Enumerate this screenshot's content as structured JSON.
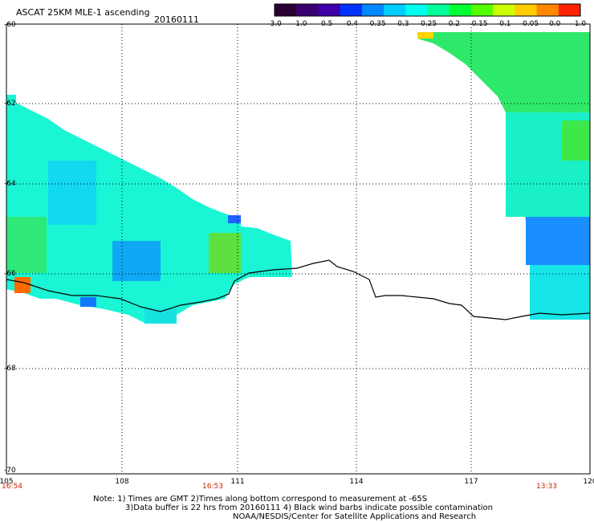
{
  "header": {
    "title": "ASCAT 25KM MLE-1 ascending",
    "date": "20160111"
  },
  "colorbar": {
    "labels": [
      "-3.0",
      "-1.0",
      "-0.5",
      "-0.4",
      "-0.35",
      "-0.3",
      "-0.25",
      "-0.2",
      "-0.15",
      "-0.1",
      "-0.05",
      "0.0",
      "1.0"
    ],
    "colors": [
      "#2a0033",
      "#3a0070",
      "#3f00a8",
      "#0033ff",
      "#0088ff",
      "#00ccff",
      "#00ffee",
      "#00ff99",
      "#00ff33",
      "#55ff00",
      "#ccff00",
      "#ffcc00",
      "#ff8800",
      "#ff2200"
    ]
  },
  "axes": {
    "x_ticks": [
      "105",
      "108",
      "111",
      "114",
      "117",
      "120"
    ],
    "y_ticks": [
      "-60",
      "-62",
      "-64",
      "-66",
      "-68",
      "-70"
    ],
    "times": [
      "16:54",
      "16:53",
      "13:33"
    ]
  },
  "notes": {
    "line1": "Note: 1) Times are GMT 2)Times along bottom correspond to measurement at -65S",
    "line2": "3)Data buffer is 22 hrs from 20160111 4) Black wind barbs indicate possible contamination",
    "line3": "NOAA/NESDIS/Center for Satellite Applications and Research"
  }
}
